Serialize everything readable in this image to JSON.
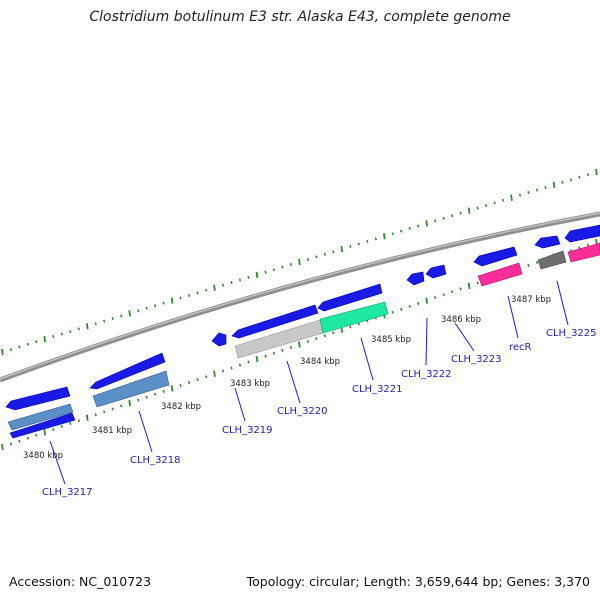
{
  "title": "Clostridium botulinum E3 str. Alaska E43, complete genome",
  "footer": {
    "accession": "Accession: NC_010723",
    "summary": "Topology: circular; Length: 3,659,644 bp; Genes: 3,370"
  },
  "colors": {
    "forward_cds": "#1a1ae6",
    "backbone": "#8c8c8c",
    "tick": "#2e8b2e",
    "label": "#2222bb",
    "hypothetical": "#c8c8c8",
    "steelblue": "#5b8fc7",
    "teal": "#1fe8a0",
    "magenta": "#ff2d9a",
    "grey": "#6e6e6e"
  },
  "kbp_labels": [
    "3480 kbp",
    "3481 kbp",
    "3482 kbp",
    "3483 kbp",
    "3484 kbp",
    "3485 kbp",
    "3486 kbp",
    "3487 kbp"
  ],
  "gene_labels": [
    "CLH_3217",
    "CLH_3218",
    "CLH_3219",
    "CLH_3220",
    "CLH_3221",
    "CLH_3222",
    "CLH_3223",
    "recR",
    "CLH_3225"
  ]
}
